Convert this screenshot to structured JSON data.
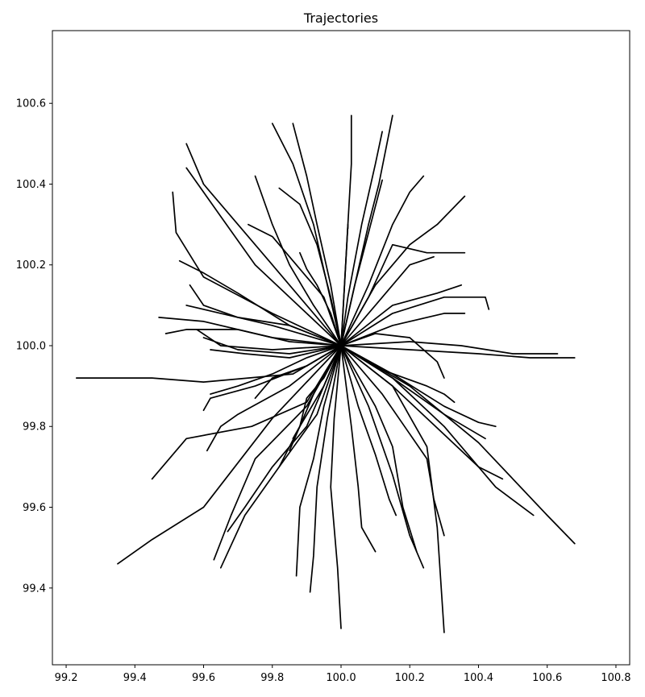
{
  "chart_data": {
    "type": "line",
    "title": "Trajectories",
    "xlabel": "",
    "ylabel": "",
    "xlim": [
      99.16,
      100.84
    ],
    "ylim": [
      99.21,
      100.78
    ],
    "x_ticks": [
      99.2,
      99.4,
      99.6,
      99.8,
      100.0,
      100.2,
      100.4,
      100.6,
      100.8
    ],
    "x_tick_labels": [
      "99.2",
      "99.4",
      "99.6",
      "99.8",
      "100.0",
      "100.2",
      "100.4",
      "100.6",
      "100.8"
    ],
    "y_ticks": [
      99.4,
      99.6,
      99.8,
      100.0,
      100.2,
      100.4,
      100.6
    ],
    "y_tick_labels": [
      "99.4",
      "99.6",
      "99.8",
      "100.0",
      "100.2",
      "100.4",
      "100.6"
    ],
    "grid": false,
    "line_color": "#000000",
    "series": [
      {
        "x": [
          100.0,
          99.86,
          99.6,
          99.45,
          99.23
        ],
        "y": [
          100.0,
          99.93,
          99.91,
          99.92,
          99.92
        ]
      },
      {
        "x": [
          100.0,
          99.8,
          99.6,
          99.45,
          99.35
        ],
        "y": [
          100.0,
          99.82,
          99.6,
          99.52,
          99.46
        ]
      },
      {
        "x": [
          100.0,
          99.9,
          99.74,
          99.55,
          99.45
        ],
        "y": [
          100.0,
          99.86,
          99.8,
          99.77,
          99.67
        ]
      },
      {
        "x": [
          100.0,
          99.9,
          99.75,
          99.62,
          99.6
        ],
        "y": [
          100.0,
          99.95,
          99.9,
          99.87,
          99.84
        ]
      },
      {
        "x": [
          100.0,
          99.85,
          99.7,
          99.65,
          99.61
        ],
        "y": [
          100.0,
          99.9,
          99.83,
          99.8,
          99.74
        ]
      },
      {
        "x": [
          100.0,
          99.9,
          99.75,
          99.68,
          99.63
        ],
        "y": [
          100.0,
          99.85,
          99.72,
          99.58,
          99.47
        ]
      },
      {
        "x": [
          100.0,
          99.93,
          99.82,
          99.72,
          99.65
        ],
        "y": [
          100.0,
          99.83,
          99.7,
          99.58,
          99.45
        ]
      },
      {
        "x": [
          100.0,
          99.9,
          99.8,
          99.72,
          99.67
        ],
        "y": [
          100.0,
          99.8,
          99.7,
          99.6,
          99.54
        ]
      },
      {
        "x": [
          100.0,
          99.95,
          99.88,
          99.82
        ],
        "y": [
          100.0,
          99.9,
          99.8,
          99.7
        ]
      },
      {
        "x": [
          100.0,
          99.95,
          99.92,
          99.88,
          99.87
        ],
        "y": [
          100.0,
          99.85,
          99.72,
          99.6,
          99.43
        ]
      },
      {
        "x": [
          100.0,
          99.96,
          99.93,
          99.92,
          99.91
        ],
        "y": [
          100.0,
          99.82,
          99.65,
          99.48,
          99.39
        ]
      },
      {
        "x": [
          100.0,
          99.98,
          99.97,
          99.99,
          100.0
        ],
        "y": [
          100.0,
          99.82,
          99.65,
          99.45,
          99.3
        ]
      },
      {
        "x": [
          100.0,
          100.03,
          100.05,
          100.06,
          100.1
        ],
        "y": [
          100.0,
          99.8,
          99.65,
          99.55,
          99.49
        ]
      },
      {
        "x": [
          100.0,
          100.05,
          100.1,
          100.14,
          100.16
        ],
        "y": [
          100.0,
          99.85,
          99.73,
          99.62,
          99.58
        ]
      },
      {
        "x": [
          100.0,
          100.08,
          100.15,
          100.2,
          100.24
        ],
        "y": [
          100.0,
          99.85,
          99.68,
          99.53,
          99.45
        ]
      },
      {
        "x": [
          100.0,
          100.1,
          100.15,
          100.18,
          100.22
        ],
        "y": [
          100.0,
          99.85,
          99.75,
          99.6,
          99.49
        ]
      },
      {
        "x": [
          100.0,
          100.15,
          100.25,
          100.28,
          100.3
        ],
        "y": [
          100.0,
          99.9,
          99.75,
          99.55,
          99.29
        ]
      },
      {
        "x": [
          100.0,
          100.12,
          100.25,
          100.27,
          100.3
        ],
        "y": [
          100.0,
          99.88,
          99.72,
          99.62,
          99.53
        ]
      },
      {
        "x": [
          100.0,
          100.15,
          100.3,
          100.4,
          100.47
        ],
        "y": [
          100.0,
          99.9,
          99.78,
          99.7,
          99.67
        ]
      },
      {
        "x": [
          100.0,
          100.15,
          100.3,
          100.45,
          100.56
        ],
        "y": [
          100.0,
          99.92,
          99.8,
          99.65,
          99.58
        ]
      },
      {
        "x": [
          100.0,
          100.2,
          100.4,
          100.6,
          100.68
        ],
        "y": [
          100.0,
          99.9,
          99.76,
          99.58,
          99.51
        ]
      },
      {
        "x": [
          100.0,
          100.15,
          100.3,
          100.4,
          100.45
        ],
        "y": [
          100.0,
          99.93,
          99.85,
          99.81,
          99.8
        ]
      },
      {
        "x": [
          100.0,
          100.15,
          100.3,
          100.38,
          100.42
        ],
        "y": [
          100.0,
          99.92,
          99.83,
          99.79,
          99.77
        ]
      },
      {
        "x": [
          100.0,
          100.12,
          100.25,
          100.3,
          100.33
        ],
        "y": [
          100.0,
          99.94,
          99.9,
          99.88,
          99.86
        ]
      },
      {
        "x": [
          100.0,
          100.2,
          100.35,
          100.5,
          100.63
        ],
        "y": [
          100.0,
          100.01,
          100.0,
          99.98,
          99.98
        ]
      },
      {
        "x": [
          100.0,
          100.2,
          100.4,
          100.55,
          100.68
        ],
        "y": [
          100.0,
          99.99,
          99.98,
          99.97,
          99.97
        ]
      },
      {
        "x": [
          100.0,
          100.1,
          100.2,
          100.28,
          100.3
        ],
        "y": [
          100.0,
          100.03,
          100.02,
          99.96,
          99.92
        ]
      },
      {
        "x": [
          100.0,
          100.15,
          100.3,
          100.36
        ],
        "y": [
          100.0,
          100.05,
          100.08,
          100.08
        ]
      },
      {
        "x": [
          100.0,
          100.15,
          100.3,
          100.42,
          100.43
        ],
        "y": [
          100.0,
          100.08,
          100.12,
          100.12,
          100.09
        ]
      },
      {
        "x": [
          100.0,
          100.15,
          100.28,
          100.35
        ],
        "y": [
          100.0,
          100.1,
          100.13,
          100.15
        ]
      },
      {
        "x": [
          100.0,
          100.1,
          100.2,
          100.27
        ],
        "y": [
          100.0,
          100.1,
          100.2,
          100.22
        ]
      },
      {
        "x": [
          100.0,
          100.08,
          100.15,
          100.25,
          100.36
        ],
        "y": [
          100.0,
          100.12,
          100.25,
          100.23,
          100.23
        ]
      },
      {
        "x": [
          100.0,
          100.1,
          100.2,
          100.28,
          100.36
        ],
        "y": [
          100.0,
          100.15,
          100.25,
          100.3,
          100.37
        ]
      },
      {
        "x": [
          100.0,
          100.08,
          100.15,
          100.2,
          100.24
        ],
        "y": [
          100.0,
          100.15,
          100.3,
          100.38,
          100.42
        ]
      },
      {
        "x": [
          100.0,
          100.04,
          100.08,
          100.11,
          100.15
        ],
        "y": [
          100.0,
          100.15,
          100.3,
          100.4,
          100.57
        ]
      },
      {
        "x": [
          100.0,
          100.04,
          100.08,
          100.12
        ],
        "y": [
          100.0,
          100.15,
          100.28,
          100.41
        ]
      },
      {
        "x": [
          100.0,
          100.02,
          100.06,
          100.1,
          100.12
        ],
        "y": [
          100.0,
          100.12,
          100.3,
          100.45,
          100.53
        ]
      },
      {
        "x": [
          100.0,
          100.01,
          100.02,
          100.02
        ],
        "y": [
          100.0,
          100.15,
          100.3,
          100.29
        ]
      },
      {
        "x": [
          100.0,
          100.01,
          100.02,
          100.03,
          100.03
        ],
        "y": [
          100.0,
          100.15,
          100.3,
          100.45,
          100.57
        ]
      },
      {
        "x": [
          100.0,
          99.97,
          99.93,
          99.9,
          99.86
        ],
        "y": [
          100.0,
          100.15,
          100.3,
          100.42,
          100.55
        ]
      },
      {
        "x": [
          100.0,
          99.96,
          99.92,
          99.86,
          99.8
        ],
        "y": [
          100.0,
          100.15,
          100.3,
          100.45,
          100.55
        ]
      },
      {
        "x": [
          100.0,
          99.97,
          99.93,
          99.88,
          99.82
        ],
        "y": [
          100.0,
          100.12,
          100.25,
          100.35,
          100.39
        ]
      },
      {
        "x": [
          100.0,
          99.92,
          99.85,
          99.8,
          99.75
        ],
        "y": [
          100.0,
          100.1,
          100.2,
          100.3,
          100.42
        ]
      },
      {
        "x": [
          100.0,
          99.95,
          99.87,
          99.8,
          99.73
        ],
        "y": [
          100.0,
          100.12,
          100.2,
          100.27,
          100.3
        ]
      },
      {
        "x": [
          100.0,
          99.9,
          99.8,
          99.7,
          99.6,
          99.55
        ],
        "y": [
          100.0,
          100.1,
          100.2,
          100.3,
          100.4,
          100.5
        ]
      },
      {
        "x": [
          100.0,
          99.9,
          99.75,
          99.65,
          99.55
        ],
        "y": [
          100.0,
          100.08,
          100.2,
          100.32,
          100.44
        ]
      },
      {
        "x": [
          100.0,
          99.8,
          99.6,
          99.52,
          99.51
        ],
        "y": [
          100.0,
          100.08,
          100.17,
          100.28,
          100.38
        ]
      },
      {
        "x": [
          100.0,
          99.85,
          99.7,
          99.6,
          99.53
        ],
        "y": [
          100.0,
          100.05,
          100.13,
          100.18,
          100.21
        ]
      },
      {
        "x": [
          100.0,
          99.85,
          99.7,
          99.6,
          99.56
        ],
        "y": [
          100.0,
          100.05,
          100.07,
          100.1,
          100.15
        ]
      },
      {
        "x": [
          100.0,
          99.8,
          99.65,
          99.55
        ],
        "y": [
          100.0,
          100.05,
          100.08,
          100.1
        ]
      },
      {
        "x": [
          100.0,
          99.8,
          99.6,
          99.47
        ],
        "y": [
          100.0,
          100.02,
          100.06,
          100.07
        ]
      },
      {
        "x": [
          100.0,
          99.85,
          99.7,
          99.55,
          99.49
        ],
        "y": [
          100.0,
          100.01,
          100.04,
          100.04,
          100.03
        ]
      },
      {
        "x": [
          100.0,
          99.8,
          99.65,
          99.58
        ],
        "y": [
          100.0,
          99.99,
          100.0,
          100.04
        ]
      },
      {
        "x": [
          100.0,
          99.85,
          99.7,
          99.6
        ],
        "y": [
          100.0,
          99.98,
          99.99,
          100.02
        ]
      },
      {
        "x": [
          100.0,
          99.85,
          99.72,
          99.62
        ],
        "y": [
          100.0,
          99.97,
          99.98,
          99.99
        ]
      },
      {
        "x": [
          100.0,
          99.9,
          99.8,
          99.7,
          99.62
        ],
        "y": [
          100.0,
          99.97,
          99.93,
          99.9,
          99.88
        ]
      },
      {
        "x": [
          100.0,
          99.9,
          99.8,
          99.75
        ],
        "y": [
          100.0,
          99.95,
          99.92,
          99.87
        ]
      },
      {
        "x": [
          100.0,
          99.93,
          99.88,
          99.85
        ],
        "y": [
          100.0,
          99.9,
          99.8,
          99.74
        ]
      },
      {
        "x": [
          100.0,
          99.95,
          99.9,
          99.88,
          99.86
        ],
        "y": [
          100.0,
          99.92,
          99.87,
          99.8,
          99.77
        ]
      },
      {
        "x": [
          100.0,
          99.97,
          99.93,
          99.9,
          99.88
        ],
        "y": [
          100.0,
          100.08,
          100.15,
          100.19,
          100.23
        ]
      }
    ]
  }
}
